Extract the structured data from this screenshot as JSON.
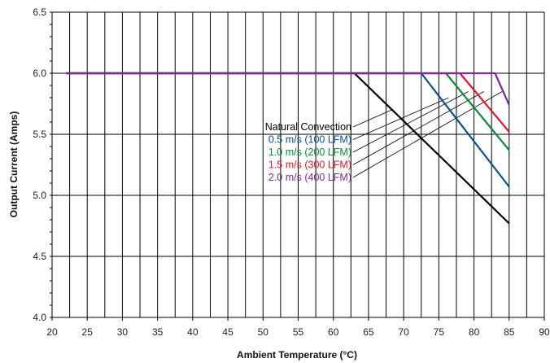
{
  "chart_data": {
    "type": "line",
    "title": "",
    "xlabel": "Ambient Temperature (°C)",
    "ylabel": "Output Current (Amps)",
    "xlim": [
      20,
      90
    ],
    "ylim": [
      4.0,
      6.5
    ],
    "x_ticks": [
      "20",
      "25",
      "30",
      "35",
      "40",
      "45",
      "50",
      "55",
      "60",
      "65",
      "70",
      "75",
      "80",
      "85",
      "90"
    ],
    "y_ticks": [
      "4.0",
      "4.5",
      "5.0",
      "5.5",
      "6.0",
      "6.5"
    ],
    "grid": true,
    "legend_placement": "center, with leader lines to curves",
    "series": [
      {
        "name": "Natural Convection",
        "color": "#000000",
        "points": [
          [
            22,
            6.0
          ],
          [
            63,
            6.0
          ],
          [
            85,
            4.77
          ]
        ]
      },
      {
        "name": "0.5 m/s (100 LFM)",
        "color": "#0b4f8c",
        "points": [
          [
            22,
            6.0
          ],
          [
            72.5,
            6.0
          ],
          [
            85,
            5.07
          ]
        ]
      },
      {
        "name": "1.0 m/s (200 LFM)",
        "color": "#0b8a3a",
        "points": [
          [
            22,
            6.0
          ],
          [
            76,
            6.0
          ],
          [
            85,
            5.37
          ]
        ]
      },
      {
        "name": "1.5 m/s (300 LFM)",
        "color": "#e0162b",
        "points": [
          [
            22,
            6.0
          ],
          [
            78,
            6.0
          ],
          [
            85,
            5.52
          ]
        ]
      },
      {
        "name": "2.0 m/s (400 LFM)",
        "color": "#7b2d8f",
        "points": [
          [
            22,
            6.0
          ],
          [
            83,
            6.0
          ],
          [
            85,
            5.74
          ]
        ]
      }
    ],
    "leader_targets": [
      [
        68.3,
        5.7
      ],
      [
        76.4,
        5.8
      ],
      [
        79.2,
        5.85
      ],
      [
        81.4,
        5.85
      ],
      [
        84.0,
        5.85
      ]
    ]
  }
}
